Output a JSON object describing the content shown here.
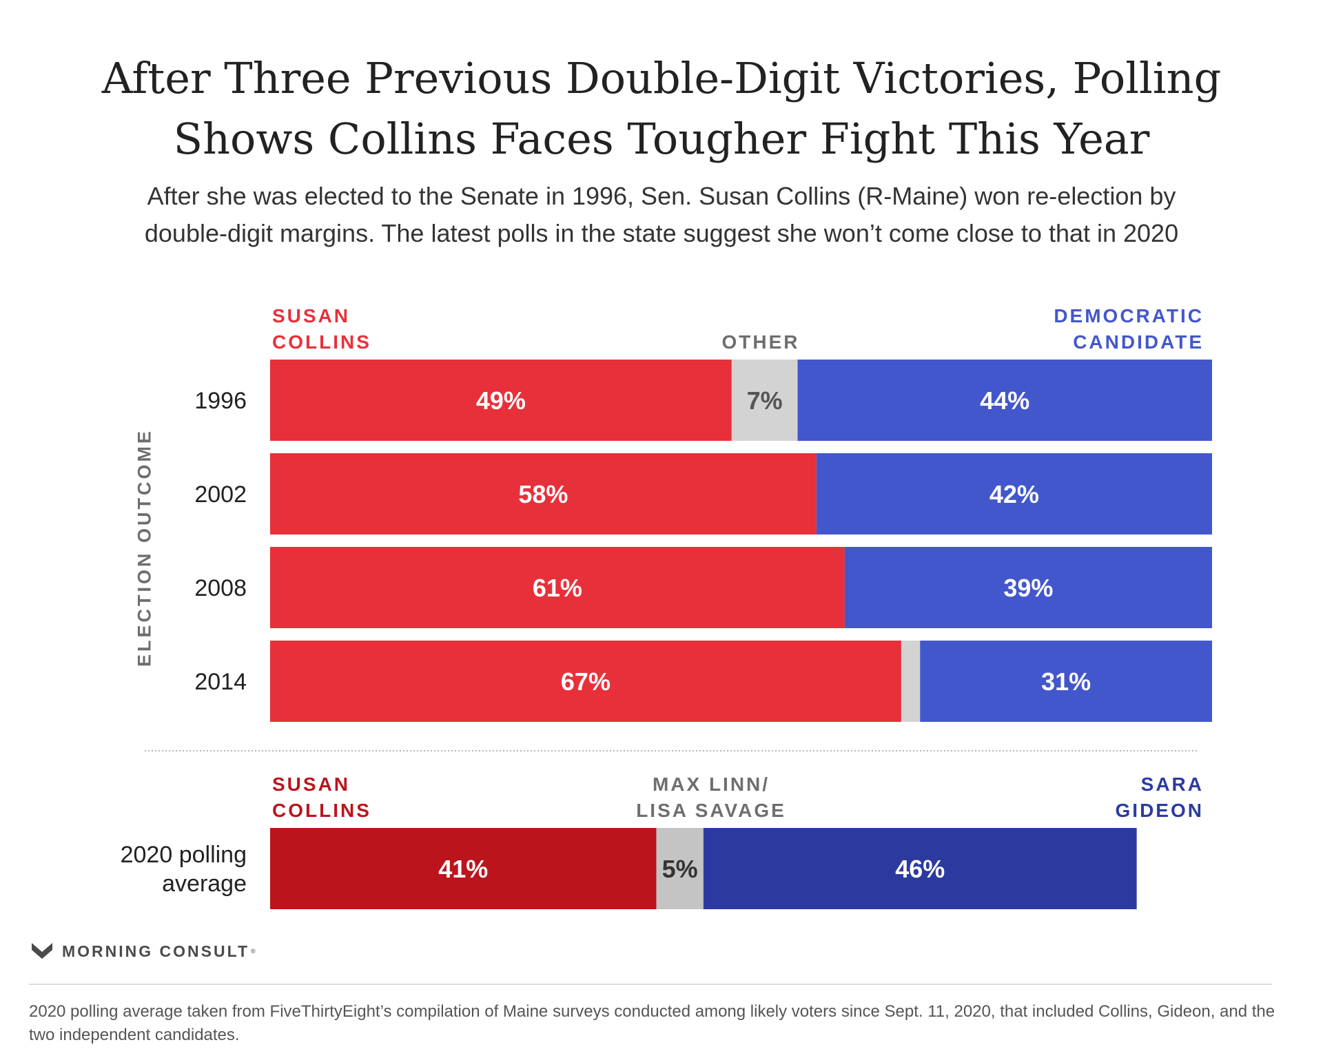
{
  "colors": {
    "top_strip": "#16cfc6",
    "collins": "#e8303a",
    "other": "#d3d3d3",
    "democrat": "#4357cc",
    "collins_2020": "#bb141d",
    "other_2020": "#c4c4c4",
    "democrat_2020": "#2c3aa0",
    "label_on_dark": "#ffffff",
    "label_on_light": "#555555",
    "label_on_light_2020": "#333333",
    "header_collins": "#e8303a",
    "header_other": "#6e6e6e",
    "header_democrat": "#4357cc",
    "header_collins_2020": "#bb141d",
    "header_other_2020": "#6e6e6e",
    "header_democrat_2020": "#2c3aa0"
  },
  "title_lines": [
    "After Three Previous Double-Digit Victories, Polling",
    "Shows Collins Faces Tougher Fight This Year"
  ],
  "subtitle_lines": [
    "After she was elected to the Senate in 1996, Sen. Susan Collins (R-Maine) won re-election by",
    "double-digit margins. The latest polls in the state suggest she won’t come close to that in 2020"
  ],
  "chart_data": {
    "type": "bar",
    "orientation": "horizontal",
    "stacked": true,
    "normalized_to": 100,
    "y_axis_label": "ELECTION OUTCOME",
    "section_headers": {
      "historical": {
        "collins": [
          "SUSAN",
          "COLLINS"
        ],
        "other": [
          "OTHER"
        ],
        "democrat": [
          "DEMOCRATIC",
          "CANDIDATE"
        ]
      },
      "polling": {
        "collins": [
          "SUSAN",
          "COLLINS"
        ],
        "other": [
          "MAX LINN/",
          "LISA SAVAGE"
        ],
        "democrat": [
          "SARA",
          "GIDEON"
        ]
      }
    },
    "categories": [
      "1996",
      "2002",
      "2008",
      "2014",
      "2020 polling average"
    ],
    "category_label_lines": [
      [
        "1996"
      ],
      [
        "2002"
      ],
      [
        "2008"
      ],
      [
        "2014"
      ],
      [
        "2020 polling",
        "average"
      ]
    ],
    "series": [
      {
        "key": "collins",
        "values": [
          49,
          58,
          61,
          67,
          41
        ],
        "labels": [
          "49%",
          "58%",
          "61%",
          "67%",
          "41%"
        ]
      },
      {
        "key": "other",
        "values": [
          7,
          0,
          0,
          2,
          5
        ],
        "labels": [
          "7%",
          "",
          "",
          "",
          "5%"
        ]
      },
      {
        "key": "democrat",
        "values": [
          44,
          42,
          39,
          31,
          46
        ],
        "labels": [
          "44%",
          "42%",
          "39%",
          "31%",
          "46%"
        ]
      }
    ],
    "grid": false,
    "legend": "none"
  },
  "brand": {
    "name": "MORNING CONSULT",
    "trademark": "®",
    "icon": "morning-consult-chevron-icon"
  },
  "footnote": "2020 polling average taken from FiveThirtyEight’s compilation of Maine surveys conducted among likely voters since Sept. 11, 2020, that included Collins, Gideon, and the two independent candidates."
}
